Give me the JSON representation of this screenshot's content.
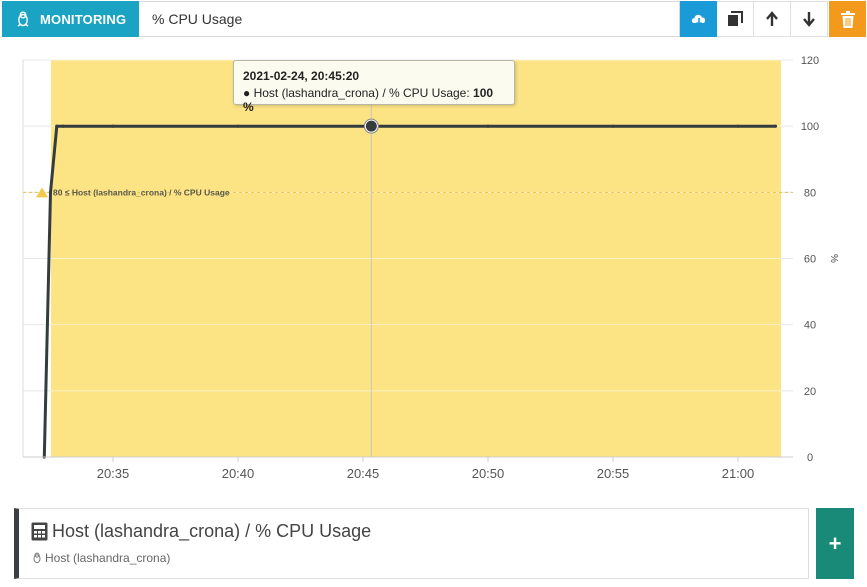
{
  "header": {
    "badge_label": "MONITORING",
    "chart_title": "% CPU Usage",
    "buttons": [
      "cloud-download-icon",
      "copy-icon",
      "arrow-up-icon",
      "arrow-down-icon",
      "trash-icon"
    ],
    "colors": {
      "badge": "#1aa3c2",
      "cloud": "#1a9ad6",
      "trash": "#f39a1d"
    }
  },
  "tooltip": {
    "date": "2021-02-24, 20:45:20",
    "series": "● Host (lashandra_crona) / % CPU Usage: ",
    "value": "100 %"
  },
  "threshold": {
    "label": "80 ≤ Host (lashandra_crona) / % CPU Usage",
    "value": 80,
    "color": "#fce383"
  },
  "legend": {
    "title": "Host (lashandra_crona) / % CPU Usage",
    "subtitle": "Host (lashandra_crona)",
    "add_label": "+"
  },
  "chart_data": {
    "type": "line",
    "series": [
      {
        "name": "Host (lashandra_crona) / % CPU Usage",
        "color": "#353c3e",
        "x": [
          "20:32:15",
          "20:32:30",
          "20:32:45",
          "20:33:00",
          "20:35:00",
          "20:40:00",
          "20:45:20",
          "20:50:00",
          "20:55:00",
          "21:00:00",
          "21:01:30"
        ],
        "y": [
          0,
          80,
          100,
          100,
          100,
          100,
          100,
          100,
          100,
          100,
          100
        ]
      }
    ],
    "x_ticks": [
      "20:35",
      "20:40",
      "20:45",
      "20:50",
      "20:55",
      "21:00"
    ],
    "y_ticks": [
      0,
      20,
      40,
      60,
      80,
      100,
      120
    ],
    "ylabel": "%",
    "ylim": [
      0,
      120
    ],
    "y_axis_side": "right",
    "highlight": {
      "x": "20:45:20",
      "y": 100
    },
    "grid": true
  }
}
